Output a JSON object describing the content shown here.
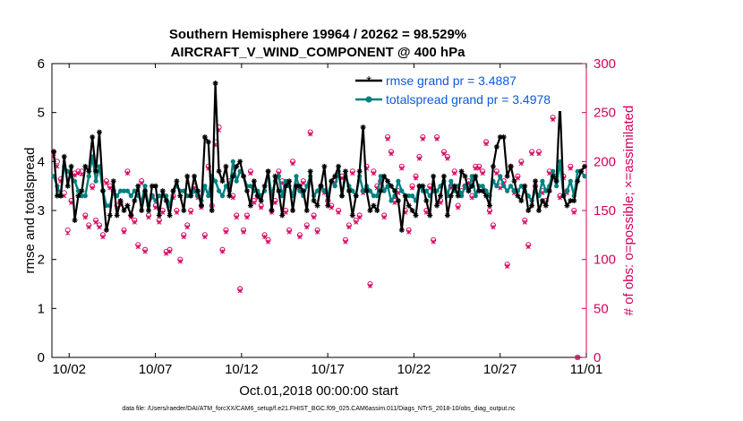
{
  "chart_data": {
    "type": "line",
    "title_line1": "Southern Hemisphere 19964 / 20262 = 98.529%",
    "title_line2": "AIRCRAFT_V_WIND_COMPONENT @ 400 hPa",
    "xlabel": "Oct.01,2018 00:00:00 start",
    "ylabel_left": "rmse and totalspread",
    "ylabel_right": "# of obs: o=possible; ×=assimilated",
    "footer": "data file: /Users/raeder/DAI/ATM_forcXX/CAM6_setup/f.e21.FHIST_BGC.f09_025.CAM6assim.011/Diags_NTrS_2018-10/obs_diag_output.nc",
    "x_start_day": 1,
    "x_range": [
      1,
      32
    ],
    "ylim_left": [
      0,
      6
    ],
    "ylim_right": [
      0,
      300
    ],
    "x_tick_days": [
      2,
      7,
      12,
      17,
      22,
      27,
      32
    ],
    "x_tick_labels": [
      "10/02",
      "10/07",
      "10/12",
      "10/17",
      "10/22",
      "10/27",
      "11/01"
    ],
    "y_ticks_left": [
      "0",
      "1",
      "2",
      "3",
      "4",
      "5",
      "6"
    ],
    "y_ticks_right": [
      "0",
      "50",
      "100",
      "150",
      "200",
      "250",
      "300"
    ],
    "legend": [
      "rmse grand pr = 3.4887",
      "totalspread grand pr = 3.4978"
    ],
    "series": [
      {
        "name": "rmse",
        "color": "#000000",
        "values": [
          4.2,
          3.3,
          3.3,
          4.1,
          3.5,
          3.9,
          2.8,
          3.3,
          3.4,
          3.9,
          3.8,
          4.5,
          3.8,
          4.6,
          3.4,
          2.6,
          2.9,
          3.6,
          2.9,
          3.2,
          3.0,
          3.1,
          2.9,
          3.2,
          3.5,
          3.0,
          3.4,
          3.0,
          3.5,
          3.5,
          2.9,
          3.4,
          3.2,
          2.9,
          3.4,
          3.6,
          3.3,
          3.0,
          3.7,
          3.3,
          3.7,
          3.4,
          3.1,
          4.5,
          4.4,
          3.0,
          5.6,
          3.8,
          3.6,
          3.9,
          3.3,
          3.7,
          3.9,
          4.0,
          3.7,
          3.4,
          3.1,
          3.6,
          3.3,
          3.2,
          3.5,
          3.8,
          3.0,
          3.7,
          3.4,
          2.9,
          3.5,
          3.6,
          3.0,
          3.5,
          3.5,
          3.4,
          3.0,
          3.8,
          3.2,
          3.1,
          3.5,
          3.9,
          3.1,
          3.6,
          3.7,
          3.9,
          3.3,
          3.8,
          3.4,
          2.9,
          3.3,
          3.8,
          4.7,
          3.4,
          3.0,
          3.1,
          3.0,
          3.4,
          3.7,
          3.6,
          3.5,
          3.4,
          3.2,
          2.6,
          3.3,
          3.1,
          3.0,
          2.9,
          3.5,
          3.5,
          3.2,
          2.9,
          3.7,
          3.1,
          3.3,
          3.7,
          2.9,
          3.3,
          3.5,
          3.3,
          3.8,
          3.7,
          3.4,
          3.5,
          3.7,
          3.4,
          3.4,
          3.3,
          3.1,
          3.9,
          4.3,
          4.5,
          4.5,
          3.7,
          3.9,
          3.6,
          3.3,
          3.2,
          3.5,
          3.0,
          3.1,
          3.6,
          3.0,
          3.2,
          3.1,
          3.4,
          3.7,
          3.6,
          5.2,
          3.3,
          3.1,
          3.2,
          3.2,
          3.6,
          3.8,
          3.9
        ]
      },
      {
        "name": "totalspread",
        "color": "#008080",
        "values": [
          3.7,
          3.5,
          3.3,
          3.9,
          3.8,
          3.7,
          3.6,
          3.4,
          3.3,
          3.3,
          3.7,
          4.1,
          3.6,
          3.9,
          3.4,
          3.1,
          3.1,
          3.4,
          3.3,
          3.4,
          3.4,
          3.4,
          3.3,
          3.4,
          3.3,
          3.2,
          3.5,
          3.1,
          3.3,
          3.2,
          3.3,
          3.3,
          3.3,
          3.1,
          3.4,
          3.5,
          3.4,
          3.4,
          3.3,
          3.3,
          3.4,
          3.3,
          3.2,
          3.5,
          3.3,
          3.7,
          3.6,
          3.4,
          3.3,
          3.5,
          3.4,
          4.0,
          3.6,
          3.8,
          3.7,
          3.5,
          3.5,
          3.4,
          3.4,
          3.3,
          3.4,
          3.8,
          3.3,
          3.6,
          3.7,
          3.3,
          3.6,
          3.5,
          3.3,
          3.7,
          3.4,
          3.3,
          3.5,
          3.7,
          3.3,
          3.4,
          3.5,
          3.4,
          3.3,
          3.6,
          3.5,
          3.8,
          3.3,
          3.7,
          3.5,
          3.4,
          3.3,
          3.7,
          3.4,
          3.5,
          3.4,
          3.3,
          3.3,
          3.7,
          3.4,
          3.5,
          3.2,
          3.3,
          3.6,
          3.4,
          3.3,
          3.3,
          3.3,
          3.2,
          3.5,
          3.4,
          3.4,
          3.3,
          3.4,
          3.4,
          3.5,
          3.6,
          3.3,
          3.6,
          3.4,
          3.5,
          3.3,
          3.5,
          3.4,
          3.7,
          3.3,
          3.5,
          3.5,
          3.4,
          3.3,
          3.6,
          3.5,
          3.7,
          3.5,
          3.4,
          3.5,
          3.4,
          3.4,
          3.5,
          3.4,
          3.3,
          3.2,
          3.4,
          3.3,
          3.6,
          3.4,
          3.5,
          3.8,
          3.5,
          4.0,
          3.3,
          3.4,
          3.6,
          3.3,
          3.8,
          3.8,
          3.7
        ]
      },
      {
        "name": "obs possible",
        "color": "#d6005d",
        "values": [
          210,
          200,
          182,
          168,
          130,
          160,
          188,
          190,
          190,
          145,
          135,
          175,
          140,
          135,
          125,
          180,
          175,
          170,
          155,
          158,
          130,
          190,
          145,
          140,
          115,
          180,
          110,
          145,
          165,
          155,
          140,
          150,
          108,
          110,
          165,
          150,
          100,
          125,
          135,
          150,
          175,
          165,
          155,
          125,
          195,
          155,
          220,
          235,
          110,
          130,
          180,
          165,
          145,
          70,
          130,
          145,
          190,
          160,
          165,
          155,
          125,
          120,
          150,
          160,
          190,
          180,
          150,
          130,
          200,
          175,
          125,
          180,
          135,
          230,
          145,
          130,
          175,
          170,
          160,
          155,
          180,
          150,
          185,
          120,
          135,
          190,
          140,
          145,
          170,
          195,
          75,
          190,
          175,
          180,
          145,
          225,
          210,
          160,
          170,
          195,
          150,
          130,
          175,
          185,
          205,
          225,
          150,
          175,
          120,
          225,
          160,
          210,
          205,
          175,
          190,
          155,
          170,
          175,
          180,
          165,
          195,
          195,
          190,
          220,
          150,
          135,
          190,
          175,
          180,
          95,
          195,
          170,
          185,
          200,
          140,
          115,
          210,
          175,
          210,
          170,
          160,
          190,
          245,
          185,
          165,
          185,
          170,
          195,
          150,
          0
        ]
      },
      {
        "name": "obs assimilated",
        "color": "#d6005d",
        "values": [
          205,
          195,
          180,
          165,
          127,
          158,
          186,
          188,
          187,
          143,
          133,
          173,
          138,
          133,
          123,
          178,
          173,
          168,
          153,
          156,
          128,
          188,
          143,
          138,
          113,
          178,
          108,
          143,
          163,
          153,
          138,
          148,
          106,
          108,
          163,
          148,
          98,
          123,
          133,
          148,
          173,
          163,
          153,
          123,
          193,
          153,
          217,
          232,
          108,
          128,
          178,
          163,
          143,
          68,
          128,
          143,
          188,
          158,
          163,
          153,
          123,
          118,
          148,
          158,
          188,
          178,
          148,
          128,
          198,
          173,
          123,
          178,
          133,
          228,
          143,
          128,
          173,
          168,
          158,
          153,
          178,
          148,
          183,
          118,
          133,
          188,
          138,
          143,
          168,
          193,
          73,
          188,
          173,
          178,
          143,
          223,
          208,
          158,
          168,
          193,
          148,
          128,
          173,
          183,
          203,
          223,
          148,
          173,
          118,
          223,
          158,
          208,
          203,
          173,
          188,
          153,
          168,
          173,
          178,
          163,
          193,
          193,
          188,
          218,
          148,
          133,
          188,
          173,
          178,
          93,
          193,
          168,
          183,
          198,
          138,
          113,
          208,
          173,
          208,
          168,
          158,
          188,
          243,
          183,
          163,
          183,
          168,
          193,
          148,
          0
        ]
      }
    ]
  }
}
